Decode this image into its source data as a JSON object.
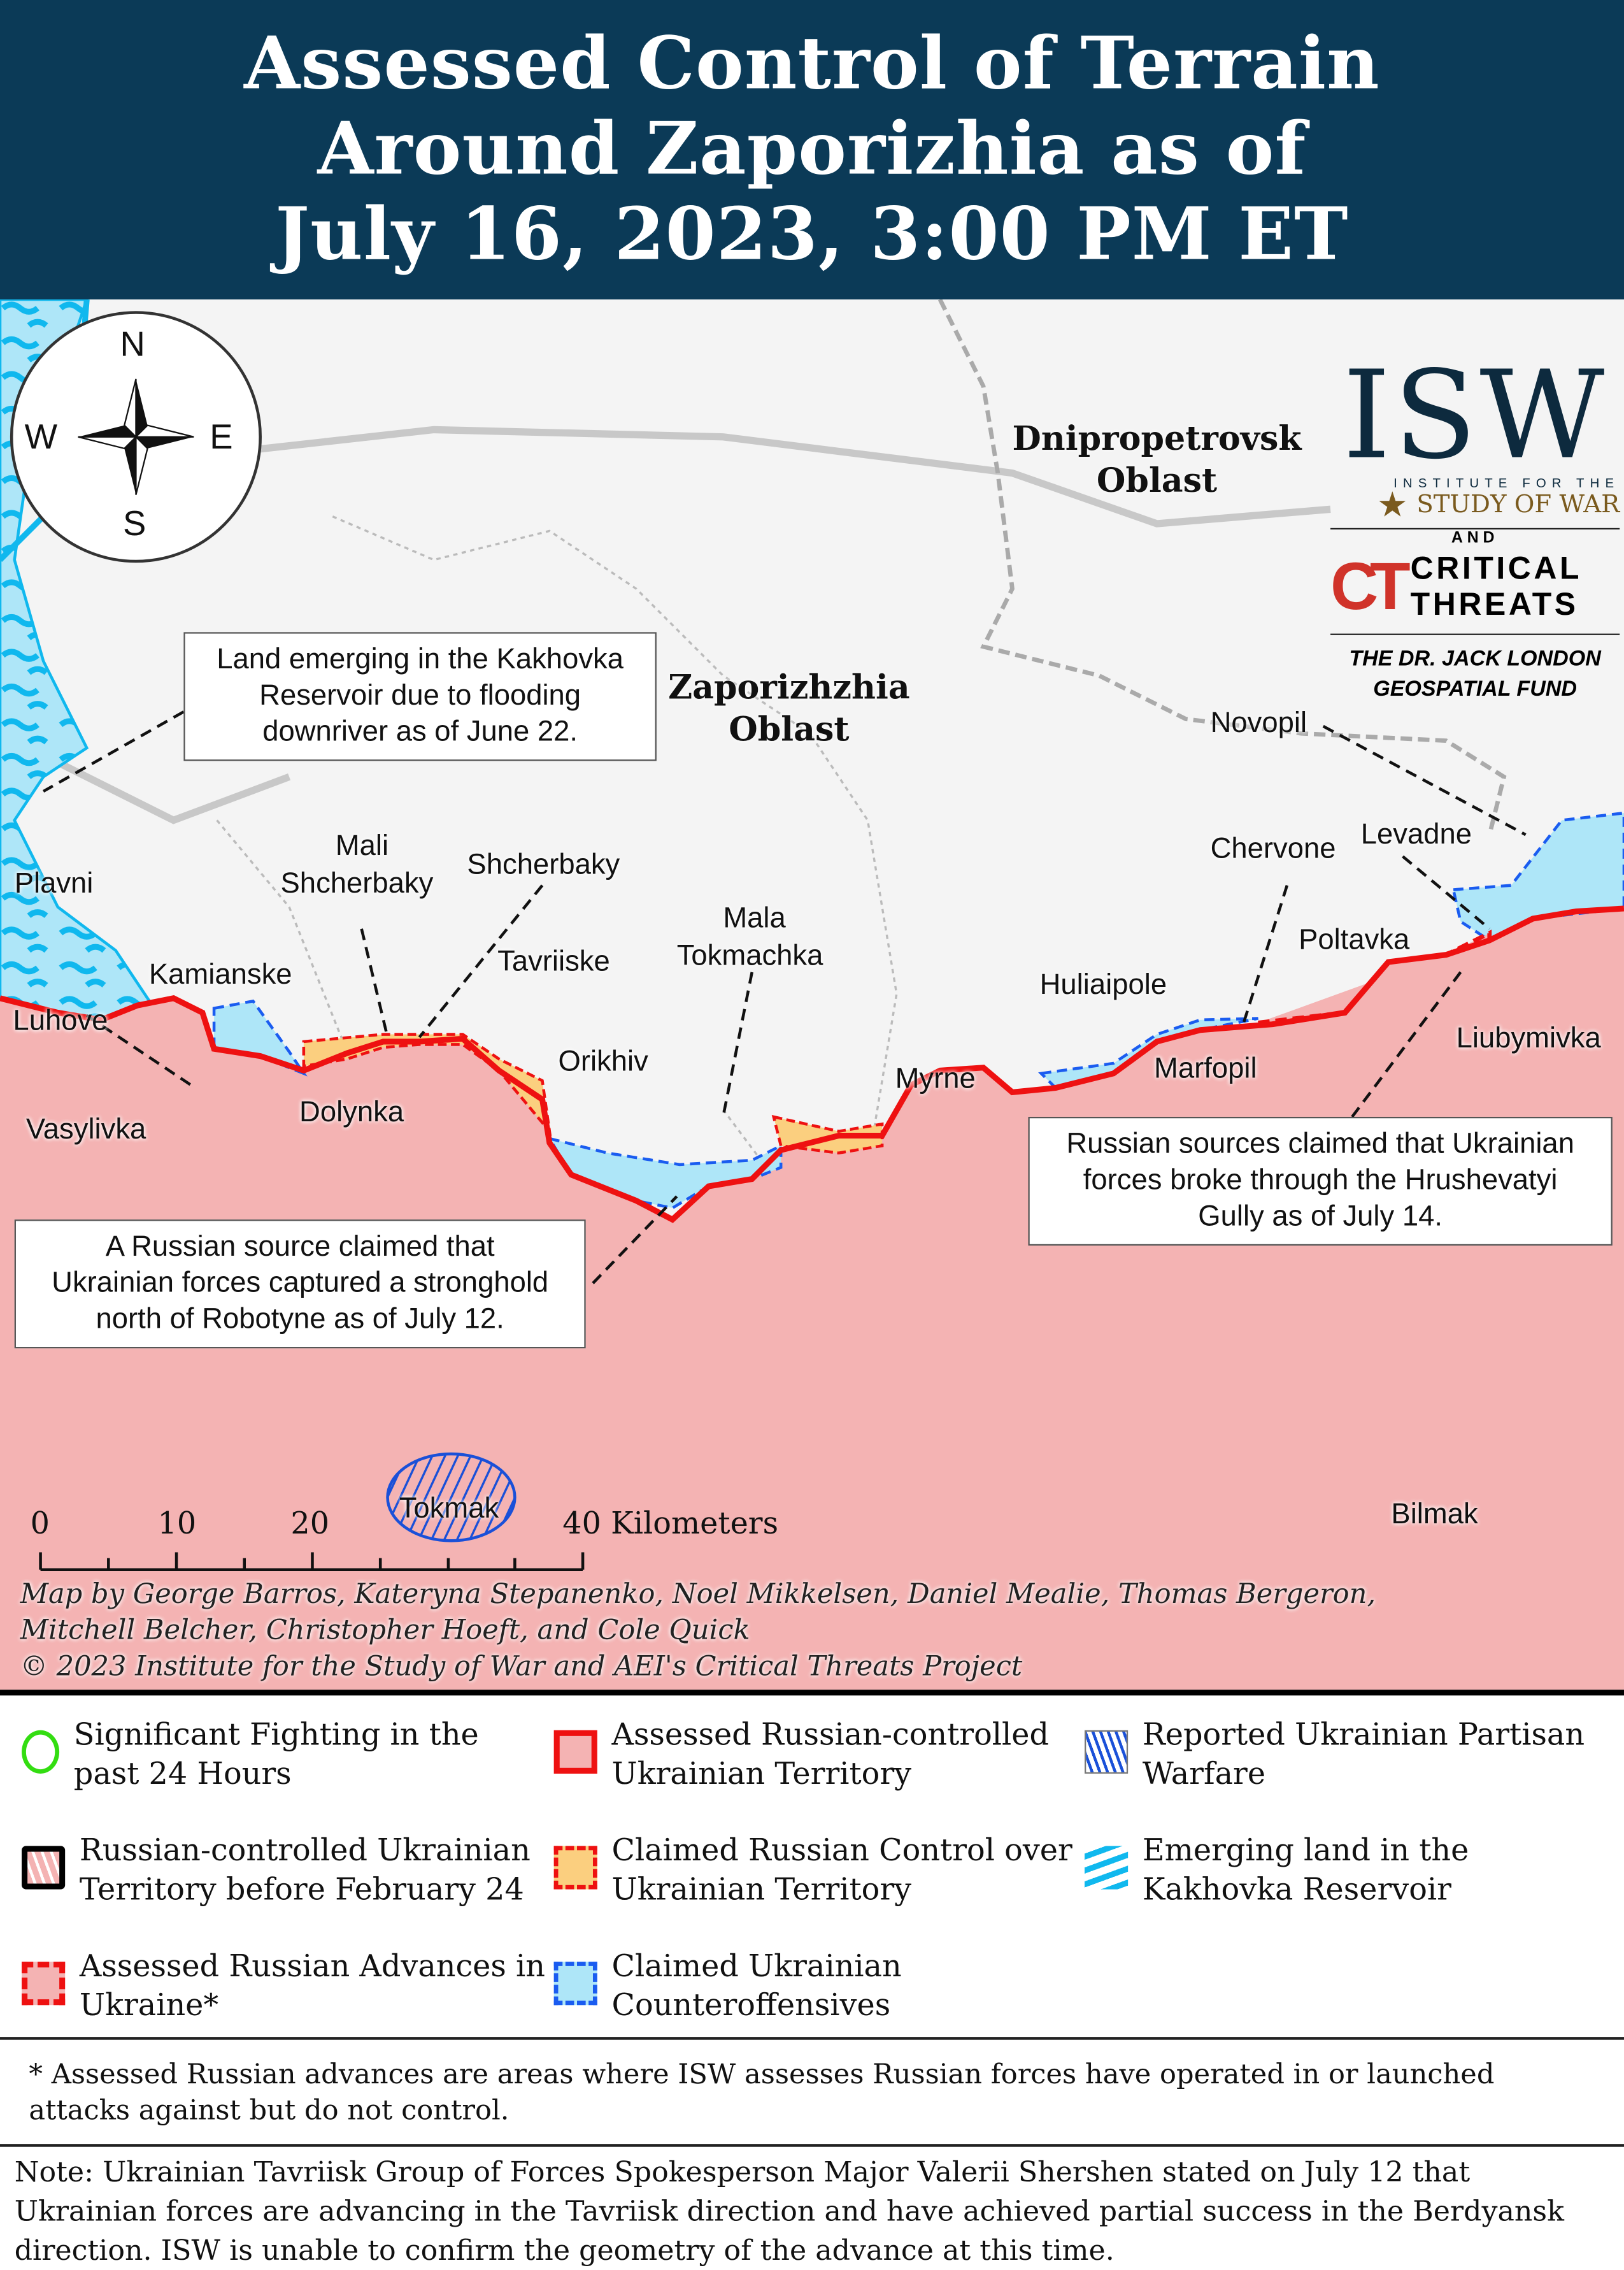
{
  "header": {
    "title_lines": [
      "Assessed Control of Terrain",
      "Around Zaporizhia as of",
      "July 16, 2023, 3:00 PM ET"
    ]
  },
  "compass": {
    "n": "N",
    "s": "S",
    "e": "E",
    "w": "W"
  },
  "logos": {
    "isw": "ISW",
    "isw_sub1": "INSTITUTE FOR THE",
    "isw_sub2": "STUDY OF WAR",
    "and": "AND",
    "ct1": "CRITICAL",
    "ct2": "THREATS",
    "fund1": "THE DR. JACK LONDON",
    "fund2": "GEOSPATIAL FUND"
  },
  "oblasts": {
    "dnipro": [
      "Dnipropetrovsk",
      "Oblast"
    ],
    "zapo": [
      "Zaporizhzhia",
      "Oblast"
    ]
  },
  "places": {
    "plavni": "Plavni",
    "mali": "Mali",
    "shcherbaky_mali": "Shcherbaky",
    "shcherbaky": "Shcherbaky",
    "kamianske": "Kamianske",
    "luhove": "Luhove",
    "vasylivka": "Vasylivka",
    "dolynka": "Dolynka",
    "tavriiske": "Tavriiske",
    "orikhiv": "Orikhiv",
    "mala": "Mala",
    "tokmachka": "Tokmachka",
    "myrne": "Myrne",
    "huliaipole": "Huliaipole",
    "marfopil": "Marfopil",
    "chervone": "Chervone",
    "poltavka": "Poltavka",
    "levadne": "Levadne",
    "novopil": "Novopil",
    "liubymivka": "Liubymivka",
    "tokmak": "Tokmak",
    "bilmak": "Bilmak"
  },
  "callouts": {
    "kakhovka": [
      "Land emerging in the Kakhovka",
      "Reservoir due to flooding",
      "downriver as of June 22."
    ],
    "robotyne": [
      "A Russian source claimed that",
      "Ukrainian forces captured a stronghold",
      "north of Robotyne as of July 12."
    ],
    "hrushevatyi": [
      "Russian sources claimed that Ukrainian",
      "forces broke through the Hrushevatyi",
      "Gully as of July 14."
    ]
  },
  "scale": {
    "ticks": [
      "0",
      "10",
      "20",
      "40 Kilometers"
    ]
  },
  "credits": [
    "Map by George Barros, Kateryna Stepanenko, Noel Mikkelsen, Daniel Mealie, Thomas Bergeron,",
    "Mitchell Belcher, Christopher Hoeft, and Cole Quick",
    "© 2023 Institute for the Study of War and AEI's Critical Threats Project"
  ],
  "legend": [
    {
      "icon": "green-circle",
      "lines": [
        "Significant Fighting in the",
        "past 24 Hours"
      ]
    },
    {
      "icon": "red-outline-pink",
      "lines": [
        "Assessed Russian-controlled",
        "Ukrainian Territory"
      ]
    },
    {
      "icon": "blue-hatch",
      "lines": [
        "Reported Ukrainian Partisan",
        "Warfare"
      ]
    },
    {
      "icon": "black-hatched",
      "lines": [
        "Russian-controlled Ukrainian",
        "Territory before February 24"
      ]
    },
    {
      "icon": "orange-dashed",
      "lines": [
        "Claimed Russian Control over",
        "Ukrainian Territory"
      ]
    },
    {
      "icon": "cyan-pattern",
      "lines": [
        "Emerging land in the",
        "Kakhovka Reservoir"
      ]
    },
    {
      "icon": "red-dashed",
      "lines": [
        "Assessed Russian Advances in",
        "Ukraine*"
      ]
    },
    {
      "icon": "blue-dashed",
      "lines": [
        "Claimed Ukrainian",
        "Counteroffensives"
      ]
    }
  ],
  "footnote": "* Assessed Russian advances are areas where ISW assesses Russian forces have operated in or launched attacks against but do not control.",
  "note": "Note: Ukrainian Tavriisk Group of Forces Spokesperson Major Valerii Shershen stated on July 12 that Ukrainian forces are advancing in the Tavriisk direction and have achieved partial success in the Berdyansk direction. ISW is unable to confirm the geometry of the advance at this time.",
  "colors": {
    "header": "#0b3a57",
    "russian": "#f4b3b3",
    "front": "#ee1111",
    "claimed_russian": "#fbcf7f",
    "claimed_ukrainian": "#aee6f8",
    "water": "#27c3f0",
    "isw_gold": "#7a5a1e",
    "ct_red": "#d0332a"
  }
}
